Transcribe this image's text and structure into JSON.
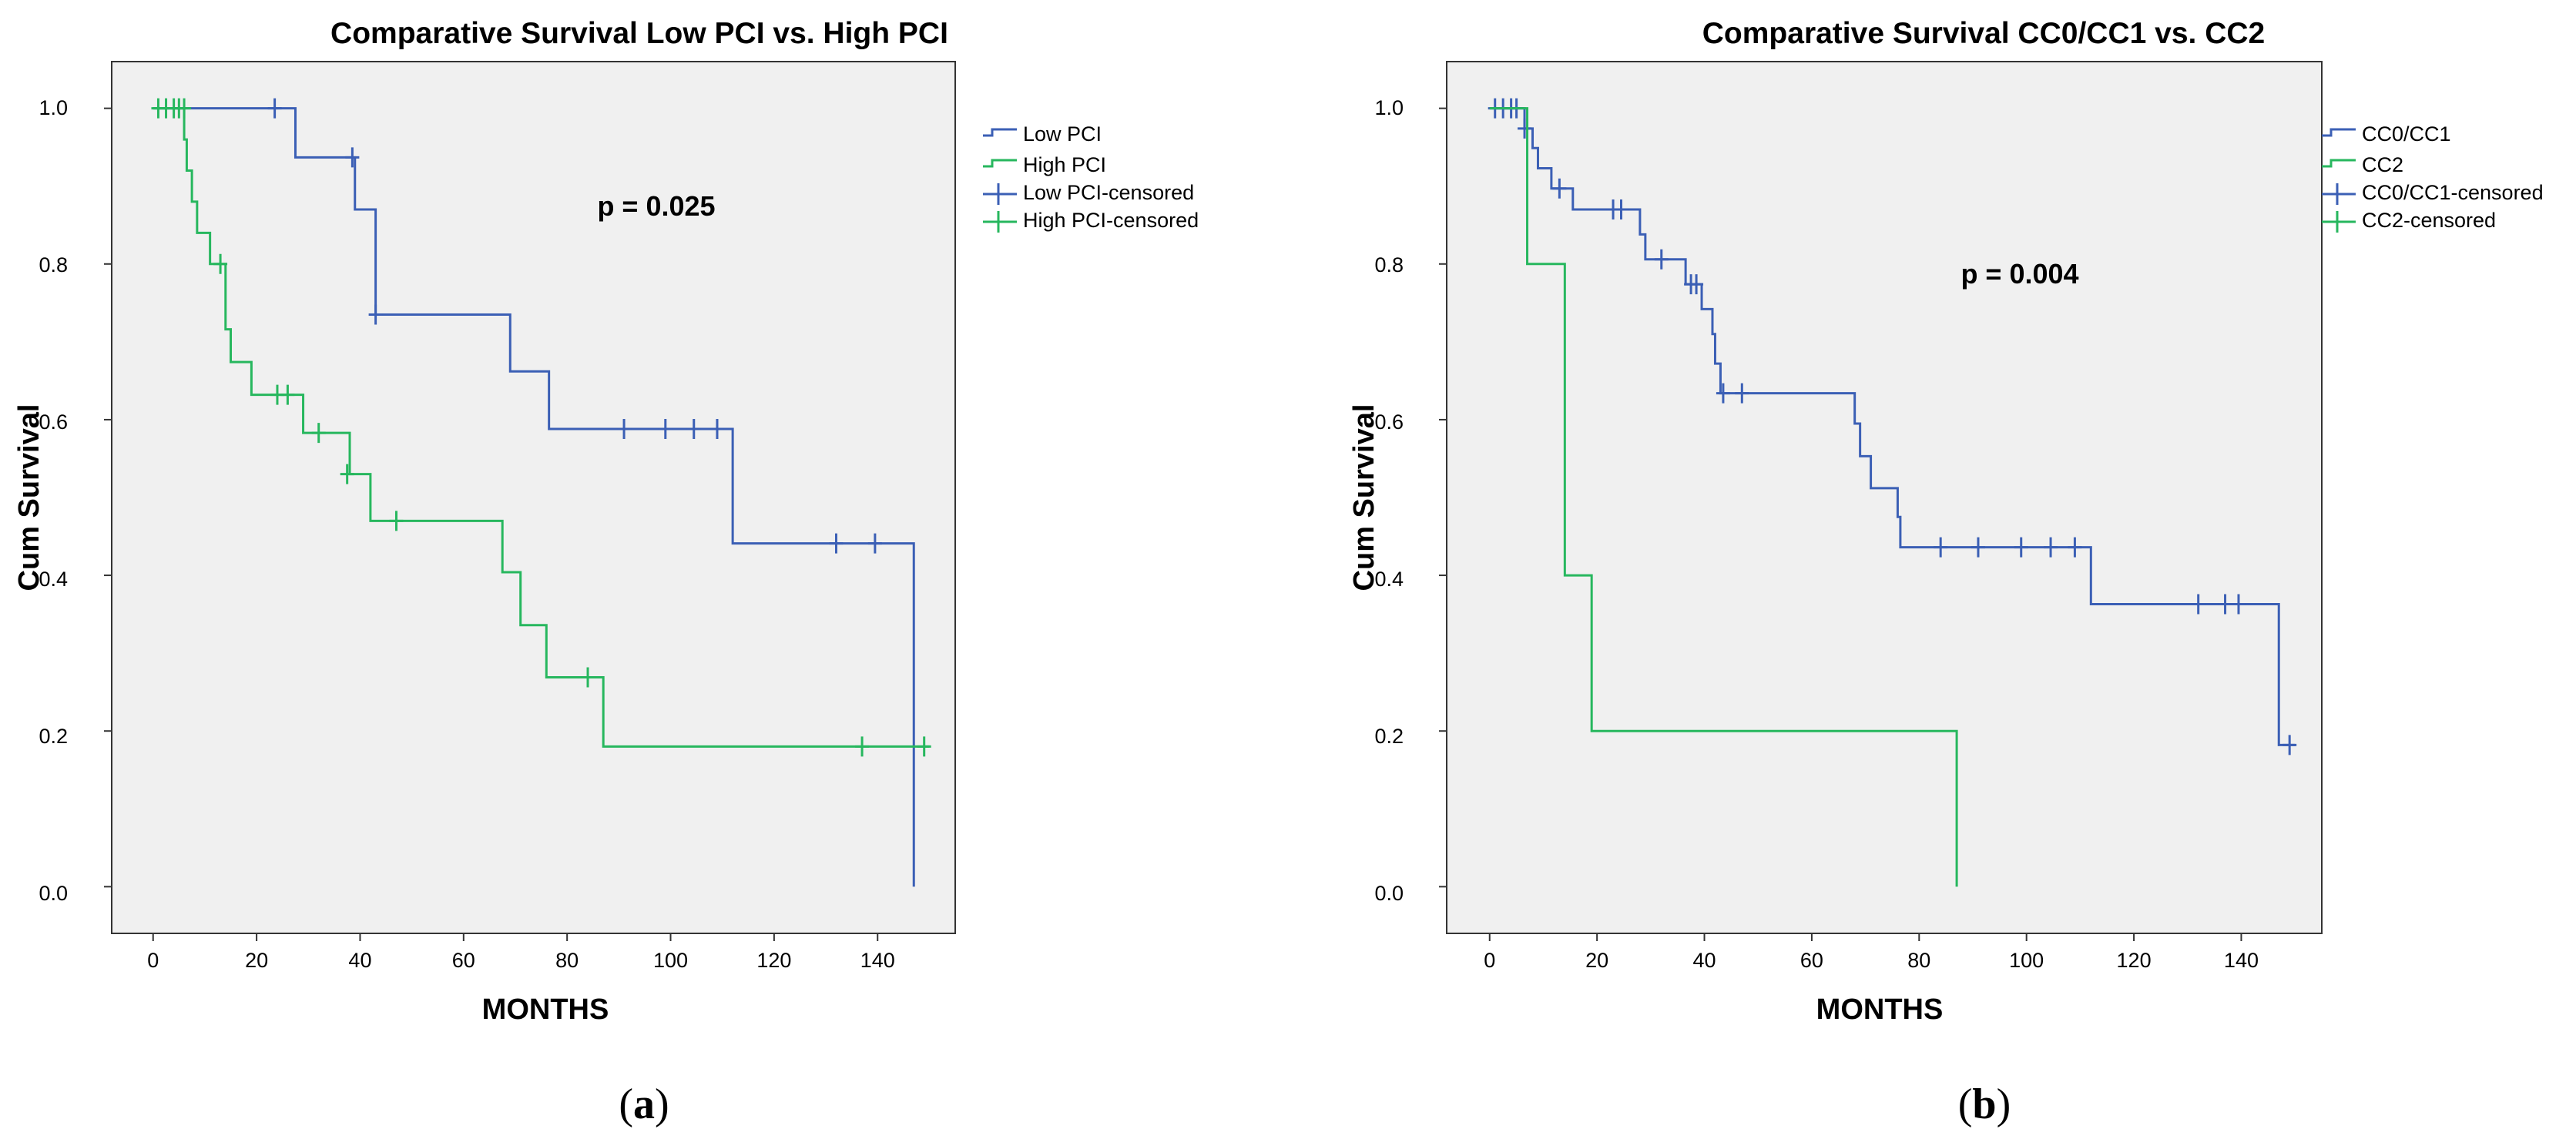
{
  "chart_data": [
    {
      "type": "line",
      "subtype": "kaplan-meier",
      "title": "Comparative Survival Low PCI vs. High PCI",
      "xlabel": "MONTHS",
      "ylabel": "Cum Survival",
      "xlim": [
        -8,
        155
      ],
      "ylim": [
        -0.06,
        1.06
      ],
      "xticks": [
        0,
        20,
        40,
        60,
        80,
        100,
        120,
        140
      ],
      "yticks": [
        "0.0",
        "0.2",
        "0.4",
        "0.6",
        "0.8",
        "1.0"
      ],
      "annotation": "p = 0.025",
      "panel_label": "a",
      "legend": [
        "Low PCI",
        "High PCI",
        "Low PCI-censored",
        "High PCI-censored"
      ],
      "series": [
        {
          "name": "Low PCI",
          "color": "#3b5fb5",
          "steps": [
            [
              0,
              1.0
            ],
            [
              27.5,
              0.937
            ],
            [
              39,
              0.87
            ],
            [
              43,
              0.735
            ],
            [
              69,
              0.662
            ],
            [
              76.5,
              0.588
            ],
            [
              112,
              0.441
            ],
            [
              147,
              0.0
            ]
          ],
          "censored": [
            [
              23.5,
              1.0
            ],
            [
              38.5,
              0.937
            ],
            [
              43,
              0.735
            ],
            [
              91,
              0.588
            ],
            [
              99,
              0.588
            ],
            [
              104.5,
              0.588
            ],
            [
              109,
              0.588
            ],
            [
              132,
              0.441
            ],
            [
              139.5,
              0.441
            ]
          ]
        },
        {
          "name": "High PCI",
          "color": "#27b75e",
          "steps": [
            [
              0,
              1.0
            ],
            [
              6,
              0.96
            ],
            [
              6.5,
              0.92
            ],
            [
              7.5,
              0.88
            ],
            [
              8.5,
              0.84
            ],
            [
              11,
              0.8
            ],
            [
              14,
              0.716
            ],
            [
              15,
              0.674
            ],
            [
              19,
              0.632
            ],
            [
              29,
              0.583
            ],
            [
              38,
              0.53
            ],
            [
              42,
              0.47
            ],
            [
              67.5,
              0.404
            ],
            [
              71,
              0.336
            ],
            [
              76,
              0.269
            ],
            [
              87,
              0.18
            ],
            [
              150,
              0.18
            ]
          ],
          "censored": [
            [
              1,
              1.0
            ],
            [
              2.5,
              1.0
            ],
            [
              4,
              1.0
            ],
            [
              5,
              1.0
            ],
            [
              6,
              1.0
            ],
            [
              13,
              0.8
            ],
            [
              24,
              0.632
            ],
            [
              26,
              0.632
            ],
            [
              32,
              0.583
            ],
            [
              37.5,
              0.53
            ],
            [
              47,
              0.47
            ],
            [
              84,
              0.269
            ],
            [
              137,
              0.18
            ],
            [
              149,
              0.18
            ]
          ]
        }
      ]
    },
    {
      "type": "line",
      "subtype": "kaplan-meier",
      "title": "Comparative Survival CC0/CC1 vs. CC2",
      "xlabel": "MONTHS",
      "ylabel": "Cum Survival",
      "xlim": [
        -8,
        155
      ],
      "ylim": [
        -0.06,
        1.06
      ],
      "xticks": [
        0,
        20,
        40,
        60,
        80,
        100,
        120,
        140
      ],
      "yticks": [
        "0.0",
        "0.2",
        "0.4",
        "0.6",
        "0.8",
        "1.0"
      ],
      "annotation": "p = 0.004",
      "panel_label": "b",
      "legend": [
        "CC0/CC1",
        "CC2",
        "CC0/CC1-censored",
        "CC2-censored"
      ],
      "series": [
        {
          "name": "CC0/CC1",
          "color": "#3b5fb5",
          "steps": [
            [
              0,
              1.0
            ],
            [
              6.5,
              0.974
            ],
            [
              8,
              0.949
            ],
            [
              9,
              0.923
            ],
            [
              11.5,
              0.897
            ],
            [
              15.5,
              0.87
            ],
            [
              28,
              0.838
            ],
            [
              29,
              0.806
            ],
            [
              36.5,
              0.774
            ],
            [
              39.5,
              0.742
            ],
            [
              41.5,
              0.71
            ],
            [
              42,
              0.672
            ],
            [
              43,
              0.634
            ],
            [
              68,
              0.595
            ],
            [
              69,
              0.553
            ],
            [
              71,
              0.512
            ],
            [
              76,
              0.475
            ],
            [
              76.5,
              0.436
            ],
            [
              112,
              0.363
            ],
            [
              147,
              0.182
            ],
            [
              150,
              0.182
            ]
          ],
          "censored": [
            [
              1,
              1.0
            ],
            [
              2.5,
              1.0
            ],
            [
              4,
              1.0
            ],
            [
              5,
              1.0
            ],
            [
              6.5,
              0.974
            ],
            [
              13,
              0.897
            ],
            [
              23,
              0.87
            ],
            [
              24.5,
              0.87
            ],
            [
              32,
              0.806
            ],
            [
              37.5,
              0.774
            ],
            [
              38.5,
              0.774
            ],
            [
              43.5,
              0.634
            ],
            [
              47,
              0.634
            ],
            [
              84,
              0.436
            ],
            [
              91,
              0.436
            ],
            [
              99,
              0.436
            ],
            [
              104.5,
              0.436
            ],
            [
              109,
              0.436
            ],
            [
              132,
              0.363
            ],
            [
              137,
              0.363
            ],
            [
              139.5,
              0.363
            ],
            [
              149,
              0.182
            ]
          ]
        },
        {
          "name": "CC2",
          "color": "#27b75e",
          "steps": [
            [
              0,
              1.0
            ],
            [
              7,
              0.8
            ],
            [
              14,
              0.4
            ],
            [
              19,
              0.2
            ],
            [
              87,
              0.0
            ]
          ],
          "censored": []
        }
      ]
    }
  ]
}
